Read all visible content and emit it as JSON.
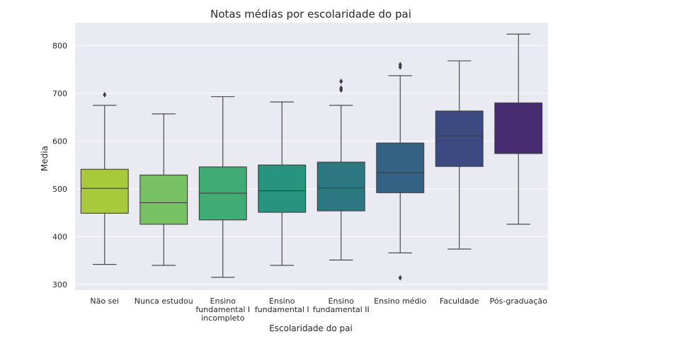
{
  "chart_data": {
    "type": "box",
    "title": "Notas médias por escolaridade do pai",
    "xlabel": "Escolaridade do pai",
    "ylabel": "Media",
    "ylim": [
      288,
      848
    ],
    "yticks": [
      300,
      400,
      500,
      600,
      700,
      800
    ],
    "grid": true,
    "categories": [
      {
        "label": [
          "Não sei"
        ],
        "color": "#a8c93c",
        "whisker_low": 342,
        "q1": 449,
        "median": 501,
        "q3": 541,
        "whisker_high": 675,
        "outliers": [
          697
        ]
      },
      {
        "label": [
          "Nunca estudou"
        ],
        "color": "#78c064",
        "whisker_low": 340,
        "q1": 426,
        "median": 471,
        "q3": 529,
        "whisker_high": 657,
        "outliers": []
      },
      {
        "label": [
          "Ensino",
          "fundamental I",
          "incompleto"
        ],
        "color": "#41ab74",
        "whisker_low": 315,
        "q1": 435,
        "median": 491,
        "q3": 546,
        "whisker_high": 693,
        "outliers": []
      },
      {
        "label": [
          "Ensino",
          "fundamental I"
        ],
        "color": "#26947f",
        "whisker_low": 340,
        "q1": 451,
        "median": 496,
        "q3": 550,
        "whisker_high": 682,
        "outliers": []
      },
      {
        "label": [
          "Ensino",
          "fundamental II"
        ],
        "color": "#2e7883",
        "whisker_low": 351,
        "q1": 454,
        "median": 502,
        "q3": 556,
        "whisker_high": 675,
        "outliers": [
          707,
          711,
          725
        ]
      },
      {
        "label": [
          "Ensino médio"
        ],
        "color": "#336285",
        "whisker_low": 366,
        "q1": 492,
        "median": 534,
        "q3": 596,
        "whisker_high": 737,
        "outliers": [
          314,
          755,
          760
        ]
      },
      {
        "label": [
          "Faculdade"
        ],
        "color": "#3c4a81",
        "whisker_low": 374,
        "q1": 547,
        "median": 611,
        "q3": 663,
        "whisker_high": 768,
        "outliers": []
      },
      {
        "label": [
          "Pós-graduação"
        ],
        "color": "#472c72",
        "whisker_low": 426,
        "q1": 574,
        "median": 618,
        "q3": 680,
        "whisker_high": 824,
        "outliers": []
      }
    ]
  }
}
